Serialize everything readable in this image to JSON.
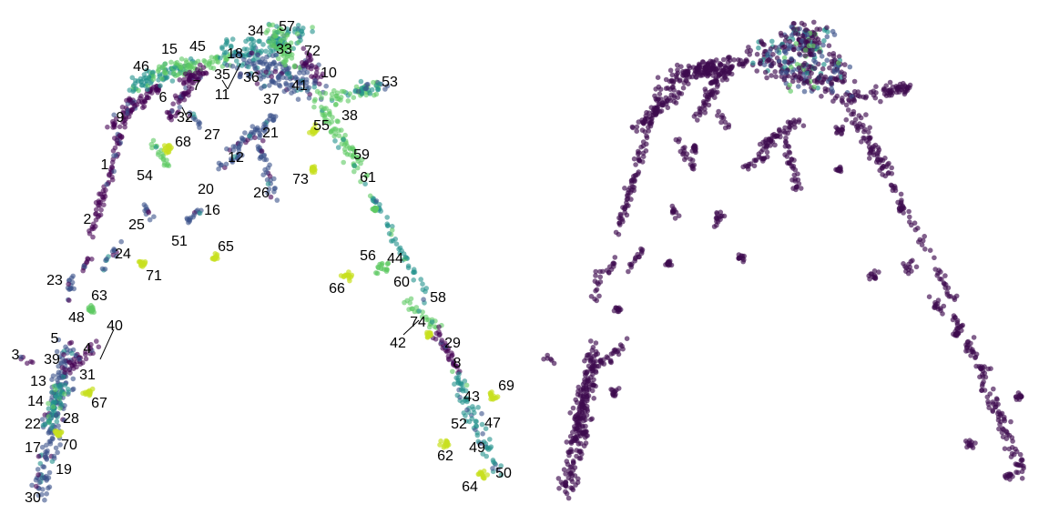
{
  "chart_data": [
    {
      "type": "scatter",
      "panel": "left",
      "title": "",
      "xlabel": "",
      "ylabel": "",
      "grid": false,
      "legend": "none",
      "colormap": "viridis",
      "xlim": [
        0,
        576
      ],
      "ylim": [
        0,
        576
      ],
      "cluster_labels": [
        {
          "label": "57",
          "x": 315,
          "y": 30
        },
        {
          "label": "34",
          "x": 281,
          "y": 35
        },
        {
          "label": "33",
          "x": 312,
          "y": 55
        },
        {
          "label": "72",
          "x": 343,
          "y": 57
        },
        {
          "label": "18",
          "x": 258,
          "y": 60
        },
        {
          "label": "15",
          "x": 186,
          "y": 55
        },
        {
          "label": "45",
          "x": 217,
          "y": 52
        },
        {
          "label": "46",
          "x": 155,
          "y": 74
        },
        {
          "label": "35",
          "x": 244,
          "y": 83
        },
        {
          "label": "36",
          "x": 276,
          "y": 86
        },
        {
          "label": "10",
          "x": 361,
          "y": 81
        },
        {
          "label": "11",
          "x": 244,
          "y": 105
        },
        {
          "label": "7",
          "x": 216,
          "y": 95
        },
        {
          "label": "6",
          "x": 179,
          "y": 108
        },
        {
          "label": "37",
          "x": 298,
          "y": 110
        },
        {
          "label": "41",
          "x": 329,
          "y": 95
        },
        {
          "label": "53",
          "x": 428,
          "y": 91
        },
        {
          "label": "32",
          "x": 203,
          "y": 130
        },
        {
          "label": "9",
          "x": 132,
          "y": 130
        },
        {
          "label": "38",
          "x": 384,
          "y": 128
        },
        {
          "label": "55",
          "x": 353,
          "y": 139
        },
        {
          "label": "27",
          "x": 233,
          "y": 149
        },
        {
          "label": "21",
          "x": 297,
          "y": 147
        },
        {
          "label": "68",
          "x": 201,
          "y": 157
        },
        {
          "label": "59",
          "x": 397,
          "y": 171
        },
        {
          "label": "12",
          "x": 259,
          "y": 174
        },
        {
          "label": "1",
          "x": 115,
          "y": 182
        },
        {
          "label": "54",
          "x": 159,
          "y": 194
        },
        {
          "label": "73",
          "x": 330,
          "y": 198
        },
        {
          "label": "61",
          "x": 404,
          "y": 196
        },
        {
          "label": "20",
          "x": 226,
          "y": 209
        },
        {
          "label": "26",
          "x": 287,
          "y": 213
        },
        {
          "label": "16",
          "x": 233,
          "y": 232
        },
        {
          "label": "2",
          "x": 96,
          "y": 242
        },
        {
          "label": "25",
          "x": 150,
          "y": 248
        },
        {
          "label": "51",
          "x": 197,
          "y": 266
        },
        {
          "label": "65",
          "x": 248,
          "y": 272
        },
        {
          "label": "24",
          "x": 135,
          "y": 280
        },
        {
          "label": "56",
          "x": 404,
          "y": 282
        },
        {
          "label": "44",
          "x": 434,
          "y": 285
        },
        {
          "label": "71",
          "x": 169,
          "y": 304
        },
        {
          "label": "23",
          "x": 60,
          "y": 309
        },
        {
          "label": "66",
          "x": 370,
          "y": 318
        },
        {
          "label": "60",
          "x": 441,
          "y": 311
        },
        {
          "label": "63",
          "x": 109,
          "y": 326
        },
        {
          "label": "58",
          "x": 481,
          "y": 328
        },
        {
          "label": "48",
          "x": 84,
          "y": 350
        },
        {
          "label": "40",
          "x": 126,
          "y": 359
        },
        {
          "label": "74",
          "x": 459,
          "y": 355
        },
        {
          "label": "5",
          "x": 60,
          "y": 373
        },
        {
          "label": "42",
          "x": 437,
          "y": 378
        },
        {
          "label": "4",
          "x": 96,
          "y": 384
        },
        {
          "label": "29",
          "x": 497,
          "y": 378
        },
        {
          "label": "3",
          "x": 17,
          "y": 391
        },
        {
          "label": "39",
          "x": 57,
          "y": 396
        },
        {
          "label": "8",
          "x": 502,
          "y": 400
        },
        {
          "label": "13",
          "x": 42,
          "y": 420
        },
        {
          "label": "31",
          "x": 96,
          "y": 413
        },
        {
          "label": "69",
          "x": 556,
          "y": 425
        },
        {
          "label": "14",
          "x": 39,
          "y": 442
        },
        {
          "label": "43",
          "x": 518,
          "y": 437
        },
        {
          "label": "67",
          "x": 109,
          "y": 444
        },
        {
          "label": "28",
          "x": 78,
          "y": 461
        },
        {
          "label": "22",
          "x": 36,
          "y": 467
        },
        {
          "label": "52",
          "x": 504,
          "y": 467
        },
        {
          "label": "47",
          "x": 541,
          "y": 466
        },
        {
          "label": "70",
          "x": 76,
          "y": 490
        },
        {
          "label": "17",
          "x": 36,
          "y": 493
        },
        {
          "label": "49",
          "x": 524,
          "y": 493
        },
        {
          "label": "62",
          "x": 489,
          "y": 502
        },
        {
          "label": "19",
          "x": 70,
          "y": 517
        },
        {
          "label": "50",
          "x": 553,
          "y": 521
        },
        {
          "label": "64",
          "x": 516,
          "y": 536
        },
        {
          "label": "30",
          "x": 36,
          "y": 548
        }
      ]
    },
    {
      "type": "scatter",
      "panel": "right",
      "title": "",
      "xlabel": "",
      "ylabel": "",
      "grid": false,
      "legend": "none",
      "colormap": "viridis",
      "xlim": [
        0,
        576
      ],
      "ylim": [
        0,
        576
      ]
    }
  ],
  "colors": {
    "viridis_0": "#440154",
    "viridis_1": "#3b528b",
    "viridis_2": "#21918c",
    "viridis_3": "#5ec962",
    "viridis_4": "#fde725",
    "dark": "#3d0b4f"
  }
}
